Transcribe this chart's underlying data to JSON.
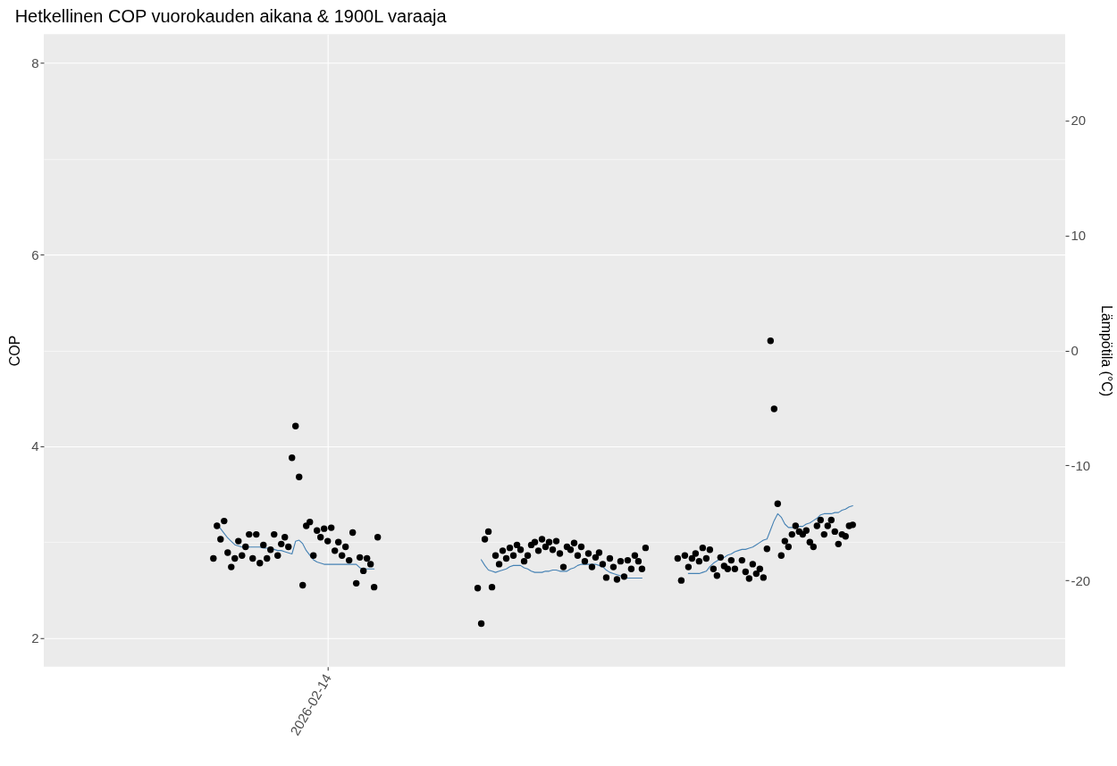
{
  "chart_data": {
    "type": "scatter",
    "title": "Hetkellinen COP vuorokauden aikana & 1900L varaaja",
    "ylabel": "COP",
    "y2label": "Lämpötila (°C)",
    "categories": [
      null,
      null,
      null,
      null,
      null,
      null,
      null,
      null,
      null,
      null,
      null,
      null,
      null,
      null,
      null,
      null,
      null,
      null,
      null,
      null,
      null,
      null,
      null,
      null,
      null,
      null,
      null,
      null,
      null,
      null,
      null,
      null,
      null,
      null,
      null,
      null,
      null,
      null,
      null,
      null,
      null,
      null,
      null,
      null,
      null,
      null,
      null,
      null,
      null,
      null,
      null,
      null,
      null,
      null,
      null,
      null,
      null,
      null,
      null,
      null,
      null,
      null,
      null,
      null,
      null,
      null,
      null,
      null,
      null,
      null,
      null,
      null,
      null,
      null,
      null,
      null,
      null,
      null,
      null,
      "2026-02-14",
      null,
      null,
      null,
      null,
      null,
      null,
      null,
      null,
      null,
      null,
      null,
      null,
      null,
      null,
      null,
      null,
      null,
      null,
      null,
      null,
      null,
      null,
      null,
      null,
      null,
      null,
      null,
      null,
      null,
      null,
      null,
      null,
      null,
      null,
      null,
      null,
      null,
      null,
      null,
      null,
      null,
      null,
      null,
      null,
      null,
      null,
      null,
      null,
      null,
      null,
      null,
      null,
      null,
      null,
      null,
      null,
      null,
      null,
      null,
      null,
      null,
      null,
      null,
      null,
      null,
      null,
      null,
      null,
      null,
      null,
      null,
      null,
      null,
      null,
      null,
      null,
      null,
      null,
      null,
      null,
      null,
      null,
      null,
      null,
      null,
      null,
      null,
      null,
      null,
      null,
      null,
      null,
      null,
      null,
      null,
      null,
      null,
      null,
      null,
      null,
      null,
      null,
      null,
      null,
      null,
      null,
      null,
      null,
      null,
      null,
      null,
      null,
      null,
      null,
      null,
      null,
      null,
      null,
      null,
      null,
      null,
      null,
      null,
      null,
      null,
      null,
      null,
      null,
      null,
      null,
      null,
      null,
      null,
      null,
      null,
      null,
      null,
      null,
      null,
      null,
      null,
      null,
      null,
      null,
      null,
      null,
      null,
      null,
      null,
      null,
      null,
      null,
      null,
      null,
      null,
      null,
      null,
      null,
      null,
      null,
      null,
      null,
      null,
      null,
      null,
      null,
      null,
      null,
      null,
      null,
      null,
      null,
      null,
      null,
      null,
      null,
      null,
      null,
      null,
      null,
      null,
      null,
      null,
      null,
      null,
      null,
      null,
      null,
      null,
      null,
      null,
      null,
      null,
      null,
      null,
      null,
      null,
      null,
      null,
      null,
      null,
      null,
      null,
      null,
      null,
      null
    ],
    "ylim": [
      1.7,
      8.3
    ],
    "yticks": [
      2,
      {
        "value": 3,
        "label": null
      },
      4,
      {
        "value": 5,
        "label": null
      },
      6,
      {
        "value": 7,
        "label": null
      },
      8
    ],
    "y2lim": [
      -27.5,
      27.5
    ],
    "y2ticks": [
      -20,
      -10,
      0,
      10,
      20
    ],
    "grid": true,
    "series": [
      {
        "color": "#000000",
        "marker": "circle",
        "values": [
          null,
          null,
          null,
          null,
          null,
          null,
          null,
          null,
          null,
          null,
          null,
          null,
          null,
          null,
          null,
          null,
          null,
          null,
          null,
          null,
          null,
          null,
          null,
          null,
          null,
          null,
          null,
          null,
          null,
          null,
          null,
          null,
          null,
          null,
          null,
          null,
          null,
          null,
          null,
          null,
          null,
          null,
          null,
          null,
          null,
          null,
          null,
          2.83,
          3.17,
          3.03,
          3.22,
          2.89,
          2.74,
          2.83,
          3.01,
          2.86,
          2.95,
          3.08,
          2.83,
          3.08,
          2.78,
          2.97,
          2.83,
          2.92,
          3.08,
          2.86,
          2.98,
          3.05,
          2.95,
          3.88,
          4.21,
          3.68,
          2.55,
          3.17,
          3.21,
          2.86,
          3.12,
          3.05,
          3.14,
          3.01,
          3.15,
          2.91,
          3.0,
          2.86,
          2.95,
          2.81,
          3.1,
          2.57,
          2.84,
          2.7,
          2.83,
          2.77,
          2.53,
          3.05,
          null,
          null,
          null,
          null,
          null,
          null,
          null,
          null,
          null,
          null,
          null,
          null,
          null,
          null,
          null,
          null,
          null,
          null,
          null,
          null,
          null,
          null,
          null,
          null,
          null,
          null,
          null,
          2.52,
          2.15,
          3.03,
          3.11,
          2.53,
          2.86,
          2.77,
          2.91,
          2.83,
          2.94,
          2.86,
          2.97,
          2.92,
          2.8,
          2.86,
          2.97,
          3.0,
          2.91,
          3.03,
          2.95,
          3.0,
          2.92,
          3.01,
          2.88,
          2.74,
          2.95,
          2.92,
          2.99,
          2.86,
          2.95,
          2.8,
          2.88,
          2.74,
          2.84,
          2.89,
          2.77,
          2.63,
          2.83,
          2.74,
          2.61,
          2.8,
          2.64,
          2.81,
          2.72,
          2.86,
          2.8,
          2.72,
          2.94,
          null,
          null,
          null,
          null,
          null,
          null,
          null,
          null,
          2.83,
          2.6,
          2.86,
          2.74,
          2.83,
          2.88,
          2.8,
          2.94,
          2.83,
          2.92,
          2.72,
          2.65,
          2.84,
          2.75,
          2.72,
          2.81,
          2.72,
          null,
          2.81,
          2.69,
          2.62,
          2.77,
          2.67,
          2.72,
          2.63,
          2.93,
          5.1,
          4.39,
          3.4,
          2.86,
          3.01,
          2.95,
          3.08,
          3.17,
          3.11,
          3.08,
          3.12,
          3.0,
          2.95,
          3.17,
          3.23,
          3.08,
          3.17,
          3.23,
          3.11,
          2.98,
          3.08,
          3.06,
          3.17,
          3.18,
          null,
          null,
          null,
          null,
          null,
          null,
          null,
          null,
          null,
          null,
          null,
          null,
          null,
          null,
          null,
          null,
          null,
          null,
          null,
          null,
          null,
          null,
          null,
          null,
          null,
          null,
          null,
          null,
          null,
          null,
          null,
          null,
          null,
          null,
          null,
          null,
          null,
          null,
          null,
          null,
          null,
          null,
          null,
          null,
          null,
          null,
          null,
          null,
          null,
          null,
          null,
          null,
          null,
          null,
          null,
          null,
          null,
          null,
          null
        ]
      },
      {
        "type": "line",
        "axis": "y2",
        "color": "#4682b4",
        "line_style": "solid",
        "marker": "none",
        "values": [
          null,
          null,
          null,
          null,
          null,
          null,
          null,
          null,
          null,
          null,
          null,
          null,
          null,
          null,
          null,
          null,
          null,
          null,
          null,
          null,
          null,
          null,
          null,
          null,
          null,
          null,
          null,
          null,
          null,
          null,
          null,
          null,
          null,
          null,
          null,
          null,
          null,
          null,
          null,
          null,
          null,
          null,
          null,
          null,
          null,
          null,
          null,
          null,
          -15.0,
          -15.5,
          -15.9,
          -16.3,
          -16.6,
          -16.9,
          -17.0,
          -17.1,
          -17.1,
          -17.1,
          -17.1,
          -17.1,
          -17.1,
          -17.2,
          -17.2,
          -17.2,
          -17.3,
          -17.4,
          -17.4,
          -17.5,
          -17.6,
          -17.7,
          -16.6,
          -16.5,
          -16.8,
          -17.4,
          -17.8,
          -18.2,
          -18.4,
          -18.5,
          -18.6,
          -18.6,
          -18.6,
          -18.6,
          -18.6,
          -18.6,
          -18.6,
          -18.6,
          -18.6,
          -18.6,
          -18.9,
          -19.0,
          -19.0,
          -19.0,
          -19.0,
          null,
          null,
          null,
          null,
          null,
          null,
          null,
          null,
          null,
          null,
          null,
          null,
          null,
          null,
          null,
          null,
          null,
          null,
          null,
          null,
          null,
          null,
          null,
          null,
          null,
          null,
          null,
          null,
          null,
          -18.2,
          -18.7,
          -19.1,
          -19.2,
          -19.3,
          -19.2,
          -19.1,
          -19.0,
          -18.8,
          -18.7,
          -18.7,
          -18.7,
          -18.9,
          -19.0,
          -19.2,
          -19.3,
          -19.3,
          -19.3,
          -19.2,
          -19.2,
          -19.1,
          -19.1,
          -19.2,
          -19.2,
          -19.2,
          -19.0,
          -18.9,
          -18.7,
          -18.6,
          -18.6,
          -18.6,
          -18.6,
          -18.6,
          -18.7,
          -18.8,
          -19.1,
          -19.3,
          -19.4,
          -19.5,
          -19.6,
          -19.7,
          -19.8,
          -19.8,
          -19.8,
          -19.8,
          -19.8,
          null,
          null,
          null,
          null,
          null,
          null,
          null,
          null,
          null,
          null,
          null,
          null,
          -19.4,
          -19.4,
          -19.4,
          -19.4,
          -19.3,
          -19.2,
          -18.8,
          -18.5,
          -18.3,
          -18.1,
          -18.0,
          -17.8,
          -17.7,
          -17.5,
          -17.4,
          -17.3,
          -17.3,
          -17.2,
          -17.1,
          -16.9,
          -16.7,
          -16.5,
          -16.4,
          -15.6,
          -14.8,
          -14.2,
          -14.5,
          -15.1,
          -15.4,
          -15.4,
          -15.4,
          -15.3,
          -15.3,
          -15.1,
          -15.0,
          -14.8,
          -14.6,
          -14.3,
          -14.2,
          -14.2,
          -14.2,
          -14.1,
          -14.1,
          -13.9,
          -13.8,
          -13.6,
          -13.5,
          null,
          null,
          null,
          null,
          null,
          null,
          null,
          null,
          null,
          null,
          null,
          null,
          null,
          null,
          null,
          null,
          null,
          null,
          null,
          null,
          null,
          null,
          null,
          null,
          null,
          null,
          null,
          null,
          null,
          null,
          null,
          null,
          null,
          null,
          null,
          null,
          null,
          null,
          null,
          null,
          null,
          null,
          null,
          null,
          null,
          null,
          null,
          null,
          null,
          null,
          null,
          null,
          null,
          null,
          null,
          null,
          null,
          null,
          null
        ]
      }
    ]
  }
}
